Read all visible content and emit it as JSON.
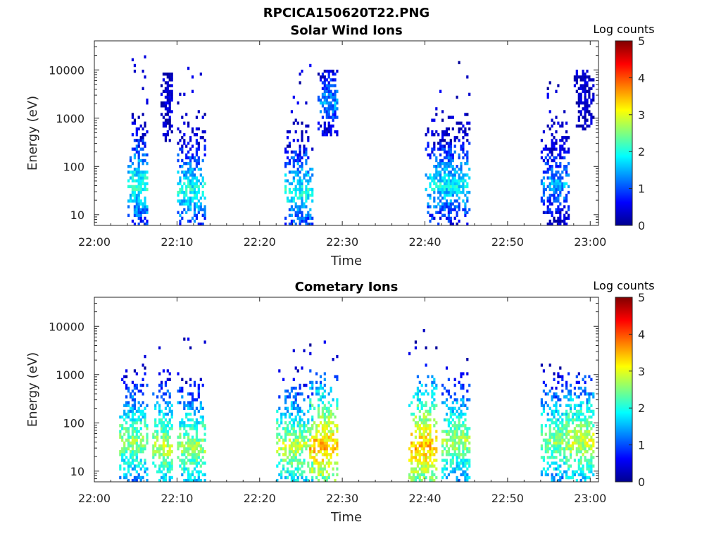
{
  "figure_title": "RPCICA150620T22.PNG",
  "colorbar": {
    "title": "Log counts",
    "ticks": [
      0,
      1,
      2,
      3,
      4,
      5
    ],
    "colormap": "jet"
  },
  "chart_data": [
    {
      "type": "heatmap",
      "title": "Solar Wind Ions",
      "xlabel": "Time",
      "ylabel": "Energy (eV)",
      "x_range_minutes": [
        0,
        61
      ],
      "x_ticks": [
        "22:00",
        "22:10",
        "22:20",
        "22:30",
        "22:40",
        "22:50",
        "23:00"
      ],
      "y_scale": "log",
      "ylim": [
        6,
        40000
      ],
      "y_ticks": [
        "10",
        "100",
        "1000",
        "10000"
      ],
      "clim": [
        0,
        5
      ],
      "bursts": [
        {
          "start": "22:04",
          "end": "22:06",
          "min_energy": 6,
          "max_energy": 20000,
          "peak_log_counts": 2.5,
          "peak_energy": 40
        },
        {
          "start": "22:08",
          "end": "22:09",
          "min_energy": 300,
          "max_energy": 10000,
          "peak_log_counts": 0.3,
          "peak_energy": 2000
        },
        {
          "start": "22:10",
          "end": "22:13",
          "min_energy": 6,
          "max_energy": 20000,
          "peak_log_counts": 2.4,
          "peak_energy": 30
        },
        {
          "start": "22:23",
          "end": "22:26",
          "min_energy": 6,
          "max_energy": 20000,
          "peak_log_counts": 2.4,
          "peak_energy": 30
        },
        {
          "start": "22:27",
          "end": "22:29",
          "min_energy": 400,
          "max_energy": 10000,
          "peak_log_counts": 1.8,
          "peak_energy": 2000
        },
        {
          "start": "22:40",
          "end": "22:45",
          "min_energy": 6,
          "max_energy": 20000,
          "peak_log_counts": 2.3,
          "peak_energy": 40
        },
        {
          "start": "22:54",
          "end": "22:57",
          "min_energy": 6,
          "max_energy": 10000,
          "peak_log_counts": 1.9,
          "peak_energy": 40
        },
        {
          "start": "22:58",
          "end": "23:00",
          "min_energy": 500,
          "max_energy": 10000,
          "peak_log_counts": 0.3,
          "peak_energy": 3000
        }
      ]
    },
    {
      "type": "heatmap",
      "title": "Cometary Ions",
      "xlabel": "Time",
      "ylabel": "Energy (eV)",
      "x_range_minutes": [
        0,
        61
      ],
      "x_ticks": [
        "22:00",
        "22:10",
        "22:20",
        "22:30",
        "22:40",
        "22:50",
        "23:00"
      ],
      "y_scale": "log",
      "ylim": [
        6,
        40000
      ],
      "y_ticks": [
        "10",
        "100",
        "1000",
        "10000"
      ],
      "clim": [
        0,
        5
      ],
      "bursts": [
        {
          "start": "22:03",
          "end": "22:06",
          "min_energy": 6,
          "max_energy": 3000,
          "peak_log_counts": 3.0,
          "peak_energy": 40
        },
        {
          "start": "22:07",
          "end": "22:09",
          "min_energy": 6,
          "max_energy": 12000,
          "peak_log_counts": 3.2,
          "peak_energy": 30
        },
        {
          "start": "22:10",
          "end": "22:13",
          "min_energy": 6,
          "max_energy": 9000,
          "peak_log_counts": 3.1,
          "peak_energy": 30
        },
        {
          "start": "22:22",
          "end": "22:26",
          "min_energy": 6,
          "max_energy": 3000,
          "peak_log_counts": 3.2,
          "peak_energy": 30
        },
        {
          "start": "22:26",
          "end": "22:29",
          "min_energy": 6,
          "max_energy": 5000,
          "peak_log_counts": 3.9,
          "peak_energy": 30
        },
        {
          "start": "22:38",
          "end": "22:41",
          "min_energy": 6,
          "max_energy": 10000,
          "peak_log_counts": 3.9,
          "peak_energy": 30
        },
        {
          "start": "22:42",
          "end": "22:45",
          "min_energy": 6,
          "max_energy": 2000,
          "peak_log_counts": 3.1,
          "peak_energy": 40
        },
        {
          "start": "22:54",
          "end": "22:57",
          "min_energy": 6,
          "max_energy": 1500,
          "peak_log_counts": 3.0,
          "peak_energy": 40
        },
        {
          "start": "22:57",
          "end": "23:00",
          "min_energy": 6,
          "max_energy": 1000,
          "peak_log_counts": 3.3,
          "peak_energy": 40
        }
      ]
    }
  ]
}
